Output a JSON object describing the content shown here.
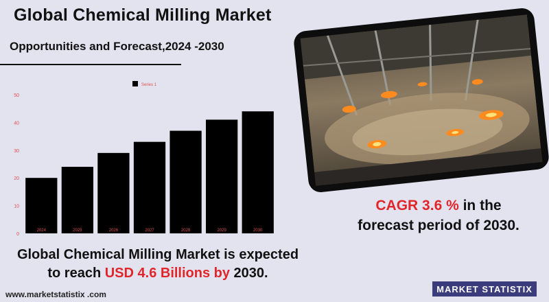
{
  "header": {
    "title": "Global Chemical Milling Market",
    "subtitle": "Opportunities and Forecast,2024 -2030"
  },
  "chart_data": {
    "type": "bar",
    "categories": [
      "2024",
      "2025",
      "2026",
      "2027",
      "2028",
      "2029",
      "2030"
    ],
    "series": [
      {
        "name": "Series 1",
        "values": [
          20,
          24,
          29,
          33,
          37,
          41,
          44
        ]
      }
    ],
    "ylim": [
      0,
      50
    ],
    "yticks": [
      0,
      10,
      20,
      30,
      40,
      50
    ],
    "grid": false,
    "legend": "top",
    "colors": {
      "bar": "#000000",
      "tick_label": "#e05050"
    }
  },
  "cagr": {
    "highlight": "CAGR 3.6 %",
    "text1": " in the",
    "text2": "forecast period of 2030."
  },
  "forecast": {
    "text1": "Global Chemical Milling Market is expected",
    "text2": "to reach ",
    "highlight": "USD 4.6 Billions by",
    "text3": " 2030."
  },
  "footer": {
    "url": "www.marketstatistix .com",
    "logo": "MARKET STATISTIX"
  },
  "colors": {
    "background": "#e3e2ef",
    "accent": "#e0262b",
    "logo_bg": "#3a3c7c"
  }
}
